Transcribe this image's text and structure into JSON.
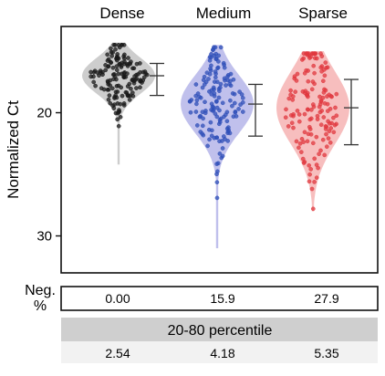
{
  "chart_data": {
    "type": "violin",
    "categories": [
      "Dense",
      "Medium",
      "Sparse"
    ],
    "ylabel": "Normalized Ct",
    "y_inverted": true,
    "ylim": [
      13,
      33
    ],
    "yticks": [
      20,
      30
    ],
    "colors": {
      "Dense": {
        "fill": "#c8c8c8",
        "points": "#1a1a1a"
      },
      "Medium": {
        "fill": "#b9b9ea",
        "points": "#2f4fb8"
      },
      "Sparse": {
        "fill": "#f6b7b7",
        "points": "#e0383f"
      }
    },
    "series": [
      {
        "category": "Dense",
        "median": 17.0,
        "q20": 16.0,
        "q80": 18.6,
        "min": 14.3,
        "max": 24.2
      },
      {
        "category": "Medium",
        "median": 19.3,
        "q20": 17.7,
        "q80": 21.9,
        "min": 14.5,
        "max": 31.0
      },
      {
        "category": "Sparse",
        "median": 19.6,
        "q20": 17.3,
        "q80": 22.6,
        "min": 15.0,
        "max": 28.0
      }
    ],
    "table": {
      "neg_label_line1": "Neg.",
      "neg_label_line2": "%",
      "neg_values": [
        "0.00",
        "15.9",
        "27.9"
      ],
      "percentile_title": "20-80 percentile",
      "percentile_values": [
        "2.54",
        "4.18",
        "5.35"
      ]
    }
  }
}
